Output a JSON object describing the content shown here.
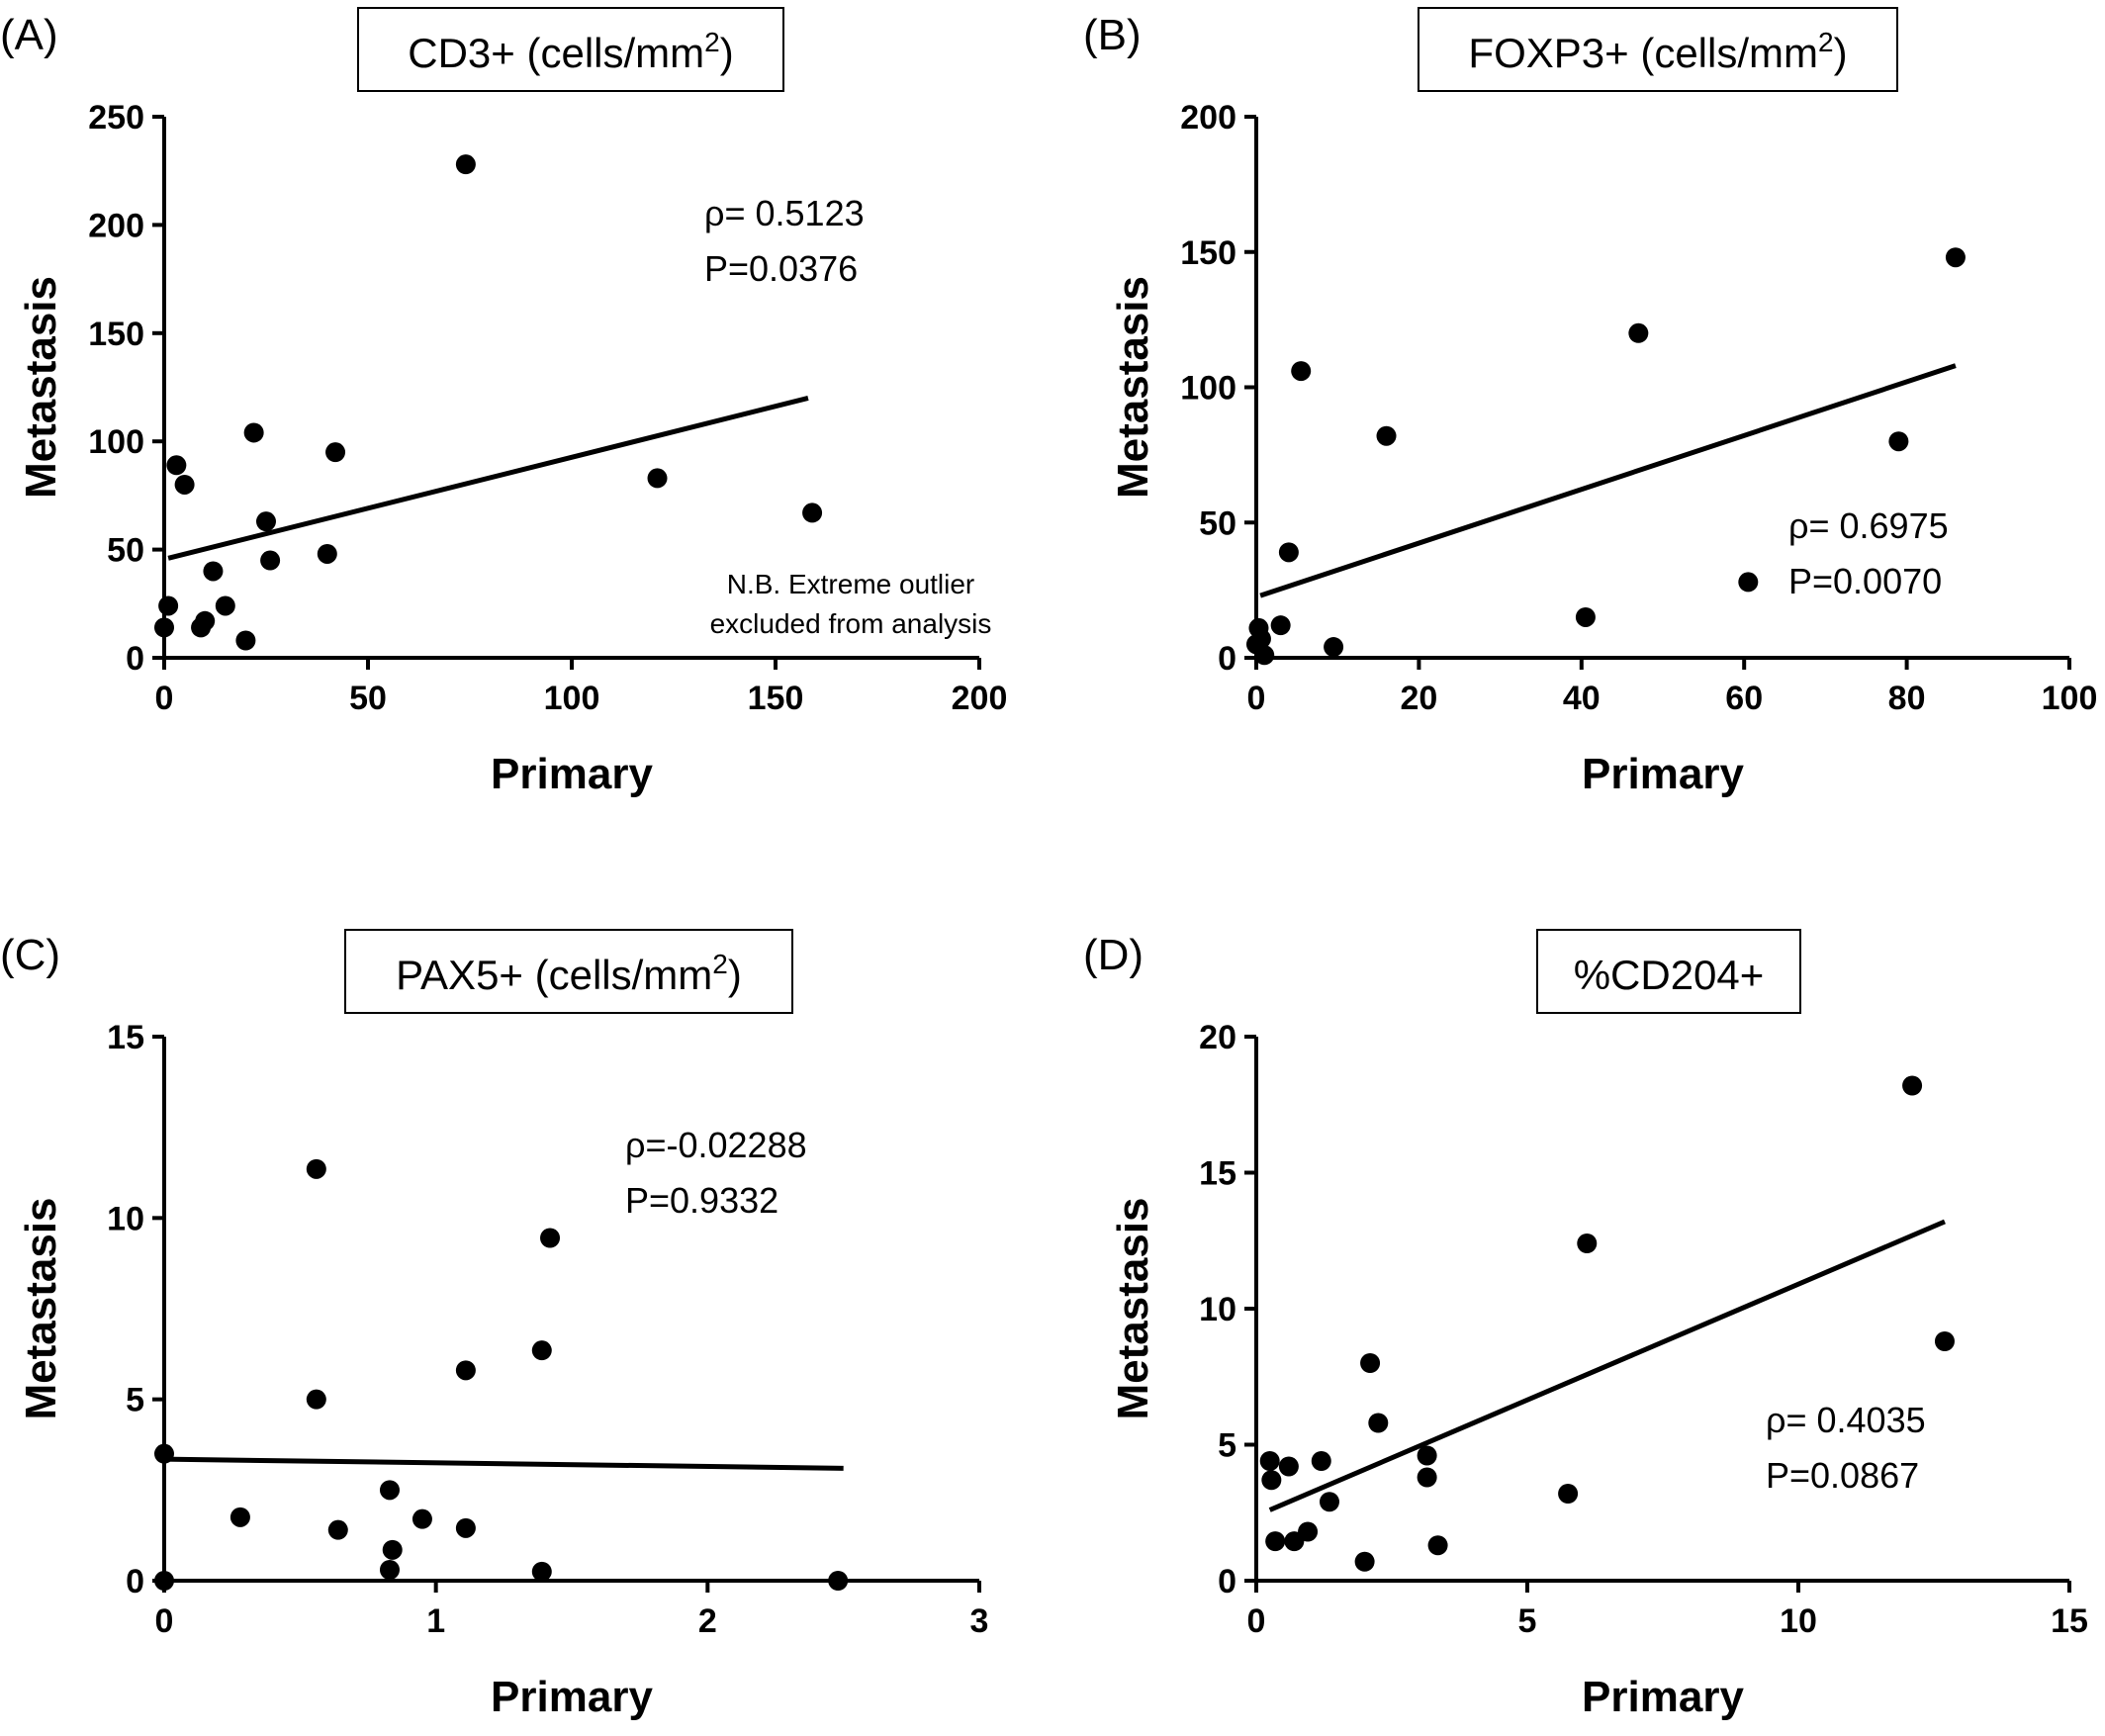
{
  "chart_data": [
    {
      "type": "scatter",
      "panel_label": "(A)",
      "title": "CD3+ (cells/mm",
      "title_sup": "2",
      "title_suffix": ")",
      "xlabel": "Primary",
      "ylabel": "Metastasis",
      "xlim": [
        0,
        200
      ],
      "ylim": [
        0,
        250
      ],
      "xticks": [
        0,
        50,
        100,
        150,
        200
      ],
      "yticks": [
        0,
        50,
        100,
        150,
        200,
        250
      ],
      "stat_rho": "ρ= 0.5123",
      "stat_p": "P=0.0376",
      "note_line1": "N.B. Extreme outlier",
      "note_line2": "excluded from analysis",
      "points": [
        {
          "x": 0,
          "y": 14
        },
        {
          "x": 1,
          "y": 24
        },
        {
          "x": 3,
          "y": 89
        },
        {
          "x": 5,
          "y": 80
        },
        {
          "x": 9,
          "y": 14
        },
        {
          "x": 10,
          "y": 17
        },
        {
          "x": 12,
          "y": 40
        },
        {
          "x": 15,
          "y": 24
        },
        {
          "x": 20,
          "y": 8
        },
        {
          "x": 22,
          "y": 104
        },
        {
          "x": 25,
          "y": 63
        },
        {
          "x": 26,
          "y": 45
        },
        {
          "x": 40,
          "y": 48
        },
        {
          "x": 42,
          "y": 95
        },
        {
          "x": 74,
          "y": 228
        },
        {
          "x": 121,
          "y": 83
        },
        {
          "x": 159,
          "y": 67
        }
      ],
      "regression": {
        "x1": 1,
        "y1": 46,
        "x2": 158,
        "y2": 120
      }
    },
    {
      "type": "scatter",
      "panel_label": "(B)",
      "title": "FOXP3+ (cells/mm",
      "title_sup": "2",
      "title_suffix": ")",
      "xlabel": "Primary",
      "ylabel": "Metastasis",
      "xlim": [
        0,
        100
      ],
      "ylim": [
        0,
        200
      ],
      "xticks": [
        0,
        20,
        40,
        60,
        80,
        100
      ],
      "yticks": [
        0,
        50,
        100,
        150,
        200
      ],
      "stat_rho": "ρ= 0.6975",
      "stat_p": "P=0.0070",
      "points": [
        {
          "x": 0,
          "y": 5
        },
        {
          "x": 0.3,
          "y": 11
        },
        {
          "x": 0.6,
          "y": 7
        },
        {
          "x": 1,
          "y": 1
        },
        {
          "x": 3,
          "y": 12
        },
        {
          "x": 4,
          "y": 39
        },
        {
          "x": 5.5,
          "y": 106
        },
        {
          "x": 9.5,
          "y": 4
        },
        {
          "x": 16,
          "y": 82
        },
        {
          "x": 40.5,
          "y": 15
        },
        {
          "x": 47,
          "y": 120
        },
        {
          "x": 60.5,
          "y": 28
        },
        {
          "x": 79,
          "y": 80
        },
        {
          "x": 86,
          "y": 148
        }
      ],
      "regression": {
        "x1": 0.5,
        "y1": 23,
        "x2": 86,
        "y2": 108
      }
    },
    {
      "type": "scatter",
      "panel_label": "(C)",
      "title": "PAX5+ (cells/mm",
      "title_sup": "2",
      "title_suffix": ")",
      "xlabel": "Primary",
      "ylabel": "Metastasis",
      "xlim": [
        0,
        3
      ],
      "ylim": [
        0,
        15
      ],
      "xticks": [
        0,
        1,
        2,
        3
      ],
      "yticks": [
        0,
        5,
        10,
        15
      ],
      "stat_rho": "ρ=-0.02288",
      "stat_p": "P=0.9332",
      "points": [
        {
          "x": 0,
          "y": 0
        },
        {
          "x": 0,
          "y": 3.5
        },
        {
          "x": 0.28,
          "y": 1.75
        },
        {
          "x": 0.56,
          "y": 5
        },
        {
          "x": 0.56,
          "y": 11.35
        },
        {
          "x": 0.64,
          "y": 1.4
        },
        {
          "x": 0.83,
          "y": 0.3
        },
        {
          "x": 0.83,
          "y": 2.5
        },
        {
          "x": 0.84,
          "y": 0.85
        },
        {
          "x": 0.95,
          "y": 1.7
        },
        {
          "x": 1.11,
          "y": 1.45
        },
        {
          "x": 1.11,
          "y": 5.8
        },
        {
          "x": 1.39,
          "y": 0.25
        },
        {
          "x": 1.39,
          "y": 6.35
        },
        {
          "x": 1.42,
          "y": 9.45
        },
        {
          "x": 2.48,
          "y": 0
        }
      ],
      "regression": {
        "x1": 0,
        "y1": 3.35,
        "x2": 2.5,
        "y2": 3.1
      }
    },
    {
      "type": "scatter",
      "panel_label": "(D)",
      "title": "%CD204+",
      "title_sup": "",
      "title_suffix": "",
      "xlabel": "Primary",
      "ylabel": "Metastasis",
      "xlim": [
        0,
        15
      ],
      "ylim": [
        0,
        20
      ],
      "xticks": [
        0,
        5,
        10,
        15
      ],
      "yticks": [
        0,
        5,
        10,
        15,
        20
      ],
      "stat_rho": "ρ= 0.4035",
      "stat_p": "P=0.0867",
      "points": [
        {
          "x": 0.25,
          "y": 4.4
        },
        {
          "x": 0.28,
          "y": 3.7
        },
        {
          "x": 0.35,
          "y": 1.45
        },
        {
          "x": 0.6,
          "y": 4.2
        },
        {
          "x": 0.7,
          "y": 1.45
        },
        {
          "x": 0.95,
          "y": 1.8
        },
        {
          "x": 1.2,
          "y": 4.4
        },
        {
          "x": 1.35,
          "y": 2.9
        },
        {
          "x": 2.0,
          "y": 0.7
        },
        {
          "x": 2.1,
          "y": 8.0
        },
        {
          "x": 2.25,
          "y": 5.8
        },
        {
          "x": 3.15,
          "y": 3.8
        },
        {
          "x": 3.15,
          "y": 4.6
        },
        {
          "x": 3.35,
          "y": 1.3
        },
        {
          "x": 5.75,
          "y": 3.2
        },
        {
          "x": 6.1,
          "y": 12.4
        },
        {
          "x": 12.1,
          "y": 18.2
        },
        {
          "x": 12.7,
          "y": 8.8
        }
      ],
      "regression": {
        "x1": 0.25,
        "y1": 2.6,
        "x2": 12.7,
        "y2": 13.2
      }
    }
  ]
}
